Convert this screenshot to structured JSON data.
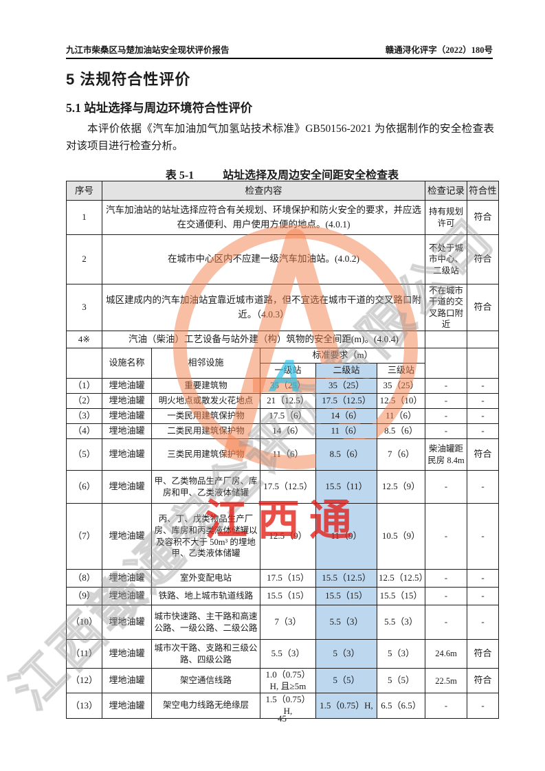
{
  "page": {
    "header_left": "九江市柴桑区马楚加油站安全现状评价报告",
    "header_right": "赣通浔化评字（2022）180号",
    "page_number": "45"
  },
  "headings": {
    "h1": "5 法规符合性评价",
    "h2": "5.1 站址选择与周边环境符合性评价"
  },
  "paragraph": "本评价依据《汽车加油加气加氢站技术标准》GB50156-2021 为依据制作的安全检查表对该项目进行检查分析。",
  "table": {
    "title_label": "表 5-1",
    "title_text": "站址选择及周边安全间距安全检查表",
    "headers": {
      "seq": "序号",
      "content": "检查内容",
      "record": "检查记录",
      "conform": "符合性"
    },
    "rows_top": [
      {
        "no": "1",
        "content": "汽车加油站的站址选择应符合有关规划、环境保护和防火安全的要求，并应选在交通便利、用户使用方便的地点。(4.0.1)",
        "record": "持有规划许可",
        "conform": "符合"
      },
      {
        "no": "2",
        "content": "在城市中心区内不应建一级汽车加油站。(4.0.2)",
        "record": "不处于城市中心、二级站",
        "conform": "符合"
      },
      {
        "no": "3",
        "content": "城区建成内的汽车加油站宜靠近城市道路，但不宜选在城市干道的交叉路口附近。（4.0.3）",
        "record": "不在城市干道的交叉路口附近",
        "conform": "符合"
      }
    ],
    "row4": {
      "no": "4※",
      "content": "汽油（柴油）工艺设备与站外建（构）筑物的安全间距(m)。(4.0.4)"
    },
    "subheader": {
      "facility": "设施名称",
      "adjacent": "相邻设施",
      "standard": "标准要求（m）",
      "stations": [
        "一级站",
        "二级站",
        "三级站"
      ]
    },
    "detail_rows": [
      {
        "no": "（1）",
        "facility": "埋地油罐",
        "adjacent": "重要建筑物",
        "l1": "35（25）",
        "l2": "35（25）",
        "l3": "35（25）",
        "record": "-",
        "conform": "-"
      },
      {
        "no": "（2）",
        "facility": "埋地油罐",
        "adjacent": "明火地点或散发火花地点",
        "l1": "21（12.5）",
        "l2": "17.5（12.5）",
        "l3": "12.5（10）",
        "record": "-",
        "conform": "-"
      },
      {
        "no": "（3）",
        "facility": "埋地油罐",
        "adjacent": "一类民用建筑保护物",
        "l1": "17.5（6）",
        "l2": "14（6）",
        "l3": "11（6）",
        "record": "-",
        "conform": "-"
      },
      {
        "no": "（4）",
        "facility": "埋地油罐",
        "adjacent": "二类民用建筑保护物",
        "l1": "14（6）",
        "l2": "11（6）",
        "l3": "8.5（6）",
        "record": "-",
        "conform": "-"
      },
      {
        "no": "（5）",
        "facility": "埋地油罐",
        "adjacent": "三类民用建筑保护物",
        "l1": "11（6）",
        "l2": "8.5（6）",
        "l3": "7（6）",
        "record": "柴油罐距民房 8.4m",
        "conform": "符合"
      },
      {
        "no": "（6）",
        "facility": "埋地油罐",
        "adjacent": "甲、乙类物品生产厂房、库房和甲、乙类液体储罐",
        "l1": "17.5（12.5）",
        "l2": "15.5（11）",
        "l3": "12.5（9）",
        "record": "-",
        "conform": "-"
      },
      {
        "no": "（7）",
        "facility": "埋地油罐",
        "adjacent": "丙、丁、戊类物品生产厂房、库房和丙类液体储罐以及容积不大于 50m³ 的埋地甲、乙类液体储罐",
        "l1": "12.5（9）",
        "l2": "11（9）",
        "l3": "10.5（9）",
        "record": "-",
        "conform": "-"
      },
      {
        "no": "（8）",
        "facility": "埋地油罐",
        "adjacent": "室外变配电站",
        "l1": "17.5（15）",
        "l2": "15.5（12.5）",
        "l3": "12.5（12.5）",
        "record": "-",
        "conform": "-"
      },
      {
        "no": "（9）",
        "facility": "埋地油罐",
        "adjacent": "铁路、地上城市轨道线路",
        "l1": "15.5（15）",
        "l2": "15.5（15）",
        "l3": "15.5（15）",
        "record": "-",
        "conform": "-"
      },
      {
        "no": "（10）",
        "facility": "埋地油罐",
        "adjacent": "城市快速路、主干路和高速公路、一级公路、二级公路",
        "l1": "7（3）",
        "l2": "5.5（3）",
        "l3": "5.5（3）",
        "record": "-",
        "conform": "-"
      },
      {
        "no": "（11）",
        "facility": "埋地油罐",
        "adjacent": "城市次干路、支路和三级公路、四级公路",
        "l1": "5.5（3）",
        "l2": "5（3）",
        "l3": "5（3）",
        "record": "24.6m",
        "conform": "符合"
      },
      {
        "no": "（12）",
        "facility": "埋地油罐",
        "adjacent": "架空通信线路",
        "l1": "1.0（0.75）H, 且≥5m",
        "l2": "5（5）",
        "l3": "5（5）",
        "record": "22.5m",
        "conform": "符合"
      },
      {
        "no": "（13）",
        "facility": "埋地油罐",
        "adjacent": "架空电力线路无绝缘层",
        "l1": "1.5（0.75）H,",
        "l2": "1.5（0.75）H,",
        "l3": "6.5（6.5）",
        "record": "-",
        "conform": "-"
      }
    ]
  },
  "watermark": {
    "red_text": "江西通",
    "cyan_glyph": "A",
    "gray_text": "江西赣通安全评价有限公司",
    "colors": {
      "ring_orange": "#F3804C",
      "red": "#E11E16",
      "cyan": "#2BC0E4",
      "highlight_blue": "#BDD7EE",
      "header_gray": "#E3E3E3"
    }
  }
}
